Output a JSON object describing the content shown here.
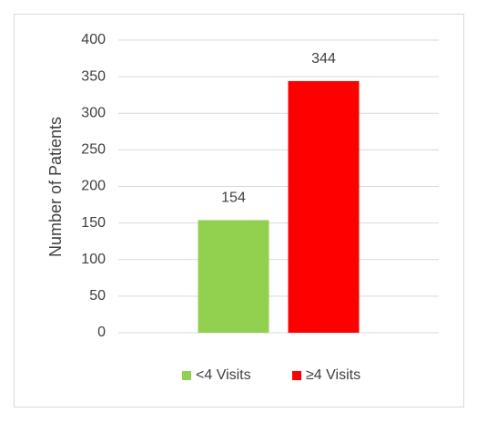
{
  "chart_data": {
    "type": "bar",
    "y_label": "Number of Patients",
    "categories": [
      null
    ],
    "series": [
      {
        "name": "<4 Visits",
        "color": "#92d050",
        "values": [
          154
        ]
      },
      {
        "name": "≥4 Visits",
        "color": "#ff0000",
        "values": [
          344
        ]
      }
    ],
    "ylim": [
      0,
      400
    ],
    "yticks": [
      0,
      50,
      100,
      150,
      200,
      250,
      300,
      350,
      400
    ],
    "grid": true,
    "legend": "bottom",
    "data_labels": true
  }
}
